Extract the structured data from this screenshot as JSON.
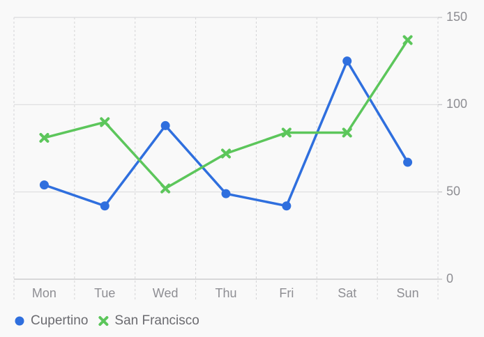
{
  "chart_data": {
    "type": "line",
    "categories": [
      "Mon",
      "Tue",
      "Wed",
      "Thu",
      "Fri",
      "Sat",
      "Sun"
    ],
    "series": [
      {
        "name": "Cupertino",
        "color": "#2f6fde",
        "symbol": "circle",
        "values": [
          54,
          42,
          88,
          49,
          42,
          125,
          67
        ]
      },
      {
        "name": "San Francisco",
        "color": "#5cc65b",
        "symbol": "cross",
        "values": [
          81,
          90,
          52,
          72,
          84,
          84,
          137
        ]
      }
    ],
    "ylim": [
      0,
      150
    ],
    "yticks": [
      0,
      50,
      100,
      150
    ],
    "grid": true,
    "y_axis_side": "right",
    "legend": "bottom-left"
  }
}
